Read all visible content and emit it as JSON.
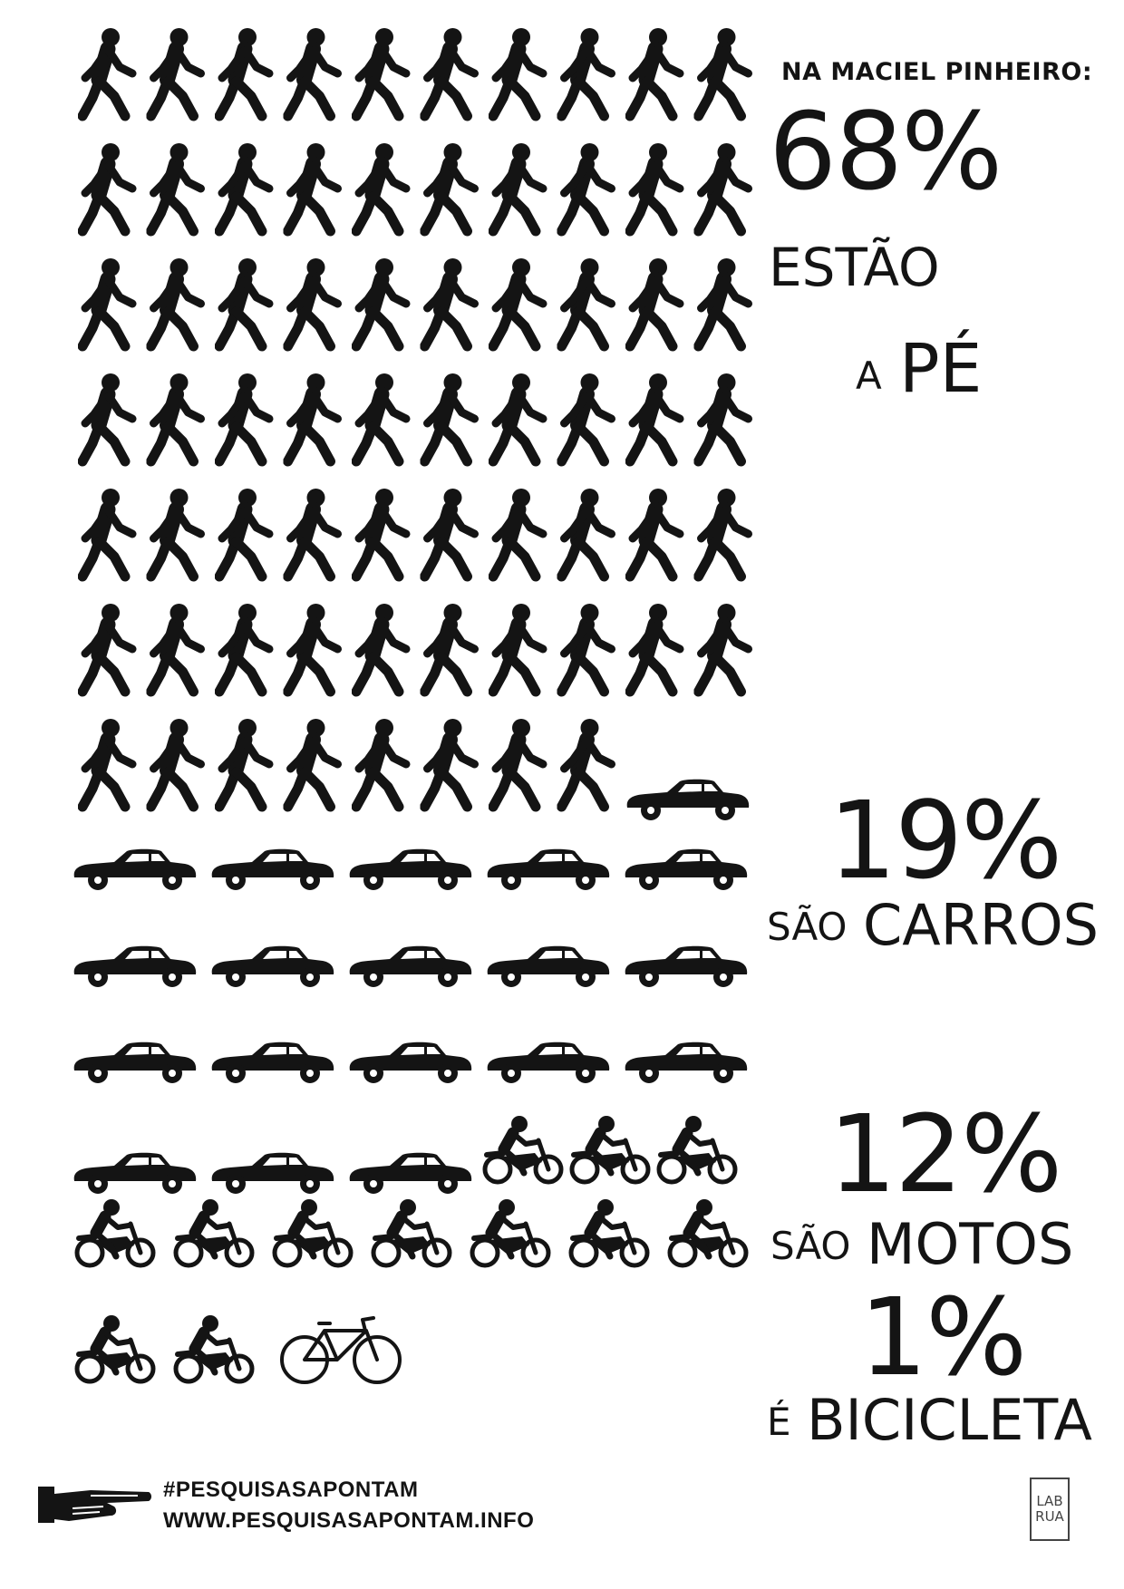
{
  "heading": "NA MACIEL PINHEIRO:",
  "colors": {
    "ink": "#141414",
    "background": "#ffffff",
    "logo": "#444444"
  },
  "stats": [
    {
      "mode": "walking",
      "icon": "walking-person-icon",
      "percent": 68,
      "percent_text": "68%",
      "line1": "ESTÃO",
      "line2_small": "A",
      "line2_big": "PÉ"
    },
    {
      "mode": "car",
      "icon": "car-icon",
      "percent": 19,
      "percent_text": "19%",
      "label_small": "SÃO",
      "label_big": "CARROS"
    },
    {
      "mode": "motorcycle",
      "icon": "motorcycle-icon",
      "percent": 12,
      "percent_text": "12%",
      "label_small": "SÃO",
      "label_big": "MOTOS"
    },
    {
      "mode": "bicycle",
      "icon": "bicycle-icon",
      "percent": 1,
      "percent_text": "1%",
      "label_small": "É",
      "label_big": "BICICLETA"
    }
  ],
  "footer": {
    "hashtag": "#PESQUISASAPONTAM",
    "url": "WWW.PESQUISASAPONTAM.INFO",
    "pointer_icon": "pointing-hand-icon",
    "logo_line1": "LAB",
    "logo_line2": "RUA"
  }
}
